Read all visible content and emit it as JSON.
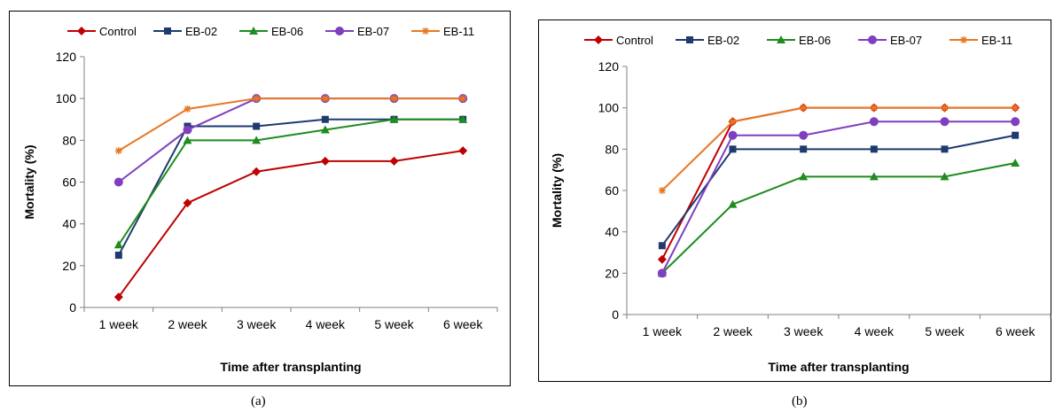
{
  "chart_data": [
    {
      "type": "line",
      "categories": [
        "1 week",
        "2 week",
        "3 week",
        "4 week",
        "5 week",
        "6 week"
      ],
      "xlabel": "Time after transplanting",
      "ylabel": "Mortality (%)",
      "ylim": [
        0,
        120
      ],
      "yticks": [
        0,
        20,
        40,
        60,
        80,
        100,
        120
      ],
      "grid": false,
      "legend": "top",
      "series": [
        {
          "name": "Control",
          "color": "#C00000",
          "marker": "diamond",
          "values": [
            5,
            50,
            65,
            70,
            70,
            75
          ]
        },
        {
          "name": "EB-02",
          "color": "#1F3A6E",
          "marker": "square",
          "values": [
            25,
            86.7,
            86.7,
            90,
            90,
            90
          ]
        },
        {
          "name": "EB-06",
          "color": "#1E8C1E",
          "marker": "triangle",
          "values": [
            30,
            80,
            80,
            85,
            90,
            90
          ]
        },
        {
          "name": "EB-07",
          "color": "#7F3FBF",
          "marker": "circle",
          "values": [
            60,
            85,
            100,
            100,
            100,
            100
          ]
        },
        {
          "name": "EB-11",
          "color": "#E87722",
          "marker": "star",
          "values": [
            75,
            95,
            100,
            100,
            100,
            100
          ]
        }
      ]
    },
    {
      "type": "line",
      "categories": [
        "1 week",
        "2 week",
        "3 week",
        "4 week",
        "5 week",
        "6 week"
      ],
      "xlabel": "Time after transplanting",
      "ylabel": "Mortality (%)",
      "ylim": [
        0,
        120
      ],
      "yticks": [
        0,
        20,
        40,
        60,
        80,
        100,
        120
      ],
      "grid": false,
      "legend": "top",
      "series": [
        {
          "name": "Control",
          "color": "#C00000",
          "marker": "diamond",
          "values": [
            26.7,
            93.3,
            100,
            100,
            100,
            100
          ]
        },
        {
          "name": "EB-02",
          "color": "#1F3A6E",
          "marker": "square",
          "values": [
            33.3,
            80,
            80,
            80,
            80,
            86.7
          ]
        },
        {
          "name": "EB-06",
          "color": "#1E8C1E",
          "marker": "triangle",
          "values": [
            20,
            53.3,
            66.7,
            66.7,
            66.7,
            73.3
          ]
        },
        {
          "name": "EB-07",
          "color": "#7F3FBF",
          "marker": "circle",
          "values": [
            20,
            86.7,
            86.7,
            93.3,
            93.3,
            93.3
          ]
        },
        {
          "name": "EB-11",
          "color": "#E87722",
          "marker": "star",
          "values": [
            60,
            93.3,
            100,
            100,
            100,
            100
          ]
        }
      ]
    }
  ],
  "captions": {
    "a": "(a)",
    "b": "(b)"
  }
}
